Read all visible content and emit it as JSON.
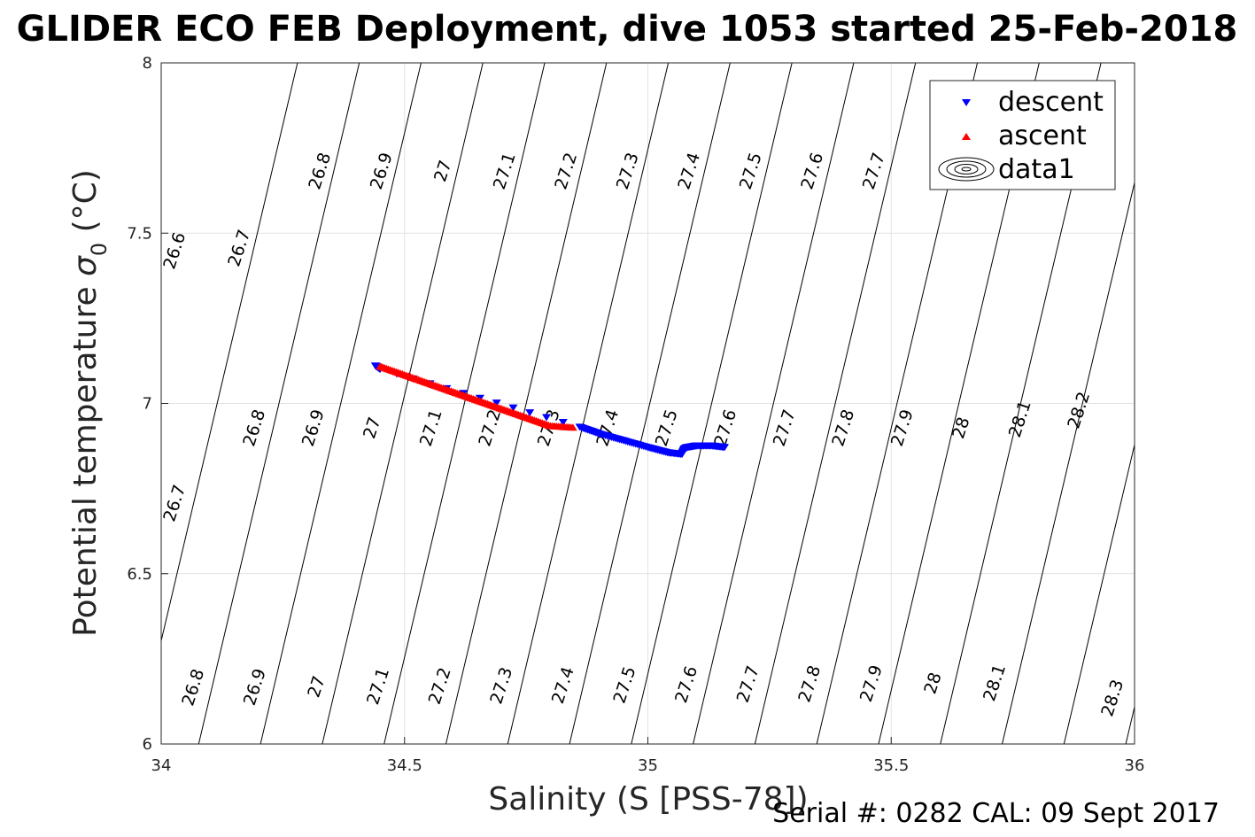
{
  "title": "GLIDER ECO FEB Deployment, dive 1053 started 25-Feb-2018",
  "footer": "Serial #: 0282  CAL: 09 Sept 2017",
  "chart_data": {
    "type": "scatter",
    "xlabel": "Salinity (S [PSS-78])",
    "ylabel_main": "Potential temperature ",
    "ylabel_sigma": "σ",
    "ylabel_sub": "0",
    "ylabel_unit": " (°C)",
    "xlim": [
      34,
      36
    ],
    "ylim": [
      6,
      8
    ],
    "xticks": [
      34,
      34.5,
      35,
      35.5,
      36
    ],
    "yticks": [
      6,
      6.5,
      7,
      7.5,
      8
    ],
    "xtick_labels": [
      "34",
      "34.5",
      "35",
      "35.5",
      "36"
    ],
    "ytick_labels": [
      "6",
      "6.5",
      "7",
      "7.5",
      "8"
    ],
    "grid": true,
    "legend_position": "top-right",
    "legend": [
      "descent",
      "ascent",
      "data1"
    ],
    "series": [
      {
        "name": "descent",
        "marker": "triangle-down",
        "color": "#0000ff",
        "x": [
          34.44,
          34.45,
          34.86,
          34.9,
          34.95,
          35.0,
          35.04,
          35.07,
          35.075,
          35.08,
          35.1,
          35.13,
          35.16
        ],
        "y": [
          7.11,
          7.1,
          6.93,
          6.91,
          6.89,
          6.87,
          6.855,
          6.85,
          6.865,
          6.87,
          6.875,
          6.875,
          6.87
        ]
      },
      {
        "name": "ascent",
        "marker": "triangle-up",
        "color": "#ff0000",
        "x": [
          34.45,
          34.5,
          34.55,
          34.6,
          34.65,
          34.7,
          34.75,
          34.8,
          34.85
        ],
        "y": [
          7.11,
          7.085,
          7.06,
          7.035,
          7.01,
          6.985,
          6.96,
          6.935,
          6.93
        ]
      }
    ],
    "isopycnal_labels": {
      "row_upper": [
        "26.6",
        "26.7",
        "26.8",
        "26.9",
        "27",
        "27.1",
        "27.2",
        "27.3",
        "27.4",
        "27.5",
        "27.6",
        "27.7"
      ],
      "row_middle": [
        "26.7",
        "26.8",
        "26.9",
        "27",
        "27.1",
        "27.2",
        "27.3",
        "27.4",
        "27.5",
        "27.6",
        "27.7",
        "27.8",
        "27.9",
        "28",
        "28.1",
        "28.2"
      ],
      "row_lower": [
        "26.8",
        "26.9",
        "27",
        "27.1",
        "27.2",
        "27.3",
        "27.4",
        "27.5",
        "27.6",
        "27.7",
        "27.8",
        "27.9",
        "28",
        "28.1",
        "28.3"
      ]
    }
  }
}
